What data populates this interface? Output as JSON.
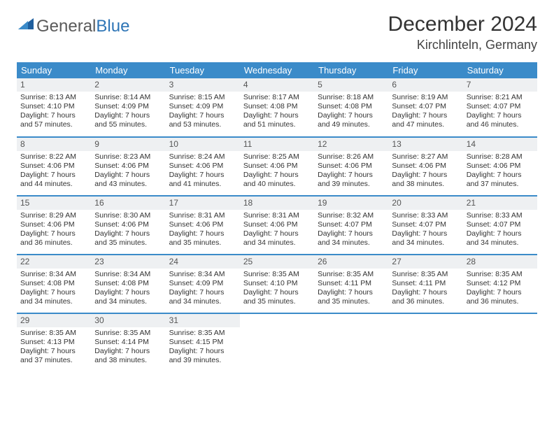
{
  "logo": {
    "text1": "General",
    "text2": "Blue"
  },
  "title": "December 2024",
  "location": "Kirchlinteln, Germany",
  "colors": {
    "header_bg": "#3b8bc9",
    "header_text": "#ffffff",
    "daynum_bg": "#eef0f2",
    "row_border": "#3b8bc9",
    "logo_gray": "#5a5a5a",
    "logo_blue": "#2e75b6"
  },
  "weekdays": [
    "Sunday",
    "Monday",
    "Tuesday",
    "Wednesday",
    "Thursday",
    "Friday",
    "Saturday"
  ],
  "weeks": [
    [
      {
        "n": "1",
        "sr": "8:13 AM",
        "ss": "4:10 PM",
        "dl": "7 hours and 57 minutes."
      },
      {
        "n": "2",
        "sr": "8:14 AM",
        "ss": "4:09 PM",
        "dl": "7 hours and 55 minutes."
      },
      {
        "n": "3",
        "sr": "8:15 AM",
        "ss": "4:09 PM",
        "dl": "7 hours and 53 minutes."
      },
      {
        "n": "4",
        "sr": "8:17 AM",
        "ss": "4:08 PM",
        "dl": "7 hours and 51 minutes."
      },
      {
        "n": "5",
        "sr": "8:18 AM",
        "ss": "4:08 PM",
        "dl": "7 hours and 49 minutes."
      },
      {
        "n": "6",
        "sr": "8:19 AM",
        "ss": "4:07 PM",
        "dl": "7 hours and 47 minutes."
      },
      {
        "n": "7",
        "sr": "8:21 AM",
        "ss": "4:07 PM",
        "dl": "7 hours and 46 minutes."
      }
    ],
    [
      {
        "n": "8",
        "sr": "8:22 AM",
        "ss": "4:06 PM",
        "dl": "7 hours and 44 minutes."
      },
      {
        "n": "9",
        "sr": "8:23 AM",
        "ss": "4:06 PM",
        "dl": "7 hours and 43 minutes."
      },
      {
        "n": "10",
        "sr": "8:24 AM",
        "ss": "4:06 PM",
        "dl": "7 hours and 41 minutes."
      },
      {
        "n": "11",
        "sr": "8:25 AM",
        "ss": "4:06 PM",
        "dl": "7 hours and 40 minutes."
      },
      {
        "n": "12",
        "sr": "8:26 AM",
        "ss": "4:06 PM",
        "dl": "7 hours and 39 minutes."
      },
      {
        "n": "13",
        "sr": "8:27 AM",
        "ss": "4:06 PM",
        "dl": "7 hours and 38 minutes."
      },
      {
        "n": "14",
        "sr": "8:28 AM",
        "ss": "4:06 PM",
        "dl": "7 hours and 37 minutes."
      }
    ],
    [
      {
        "n": "15",
        "sr": "8:29 AM",
        "ss": "4:06 PM",
        "dl": "7 hours and 36 minutes."
      },
      {
        "n": "16",
        "sr": "8:30 AM",
        "ss": "4:06 PM",
        "dl": "7 hours and 35 minutes."
      },
      {
        "n": "17",
        "sr": "8:31 AM",
        "ss": "4:06 PM",
        "dl": "7 hours and 35 minutes."
      },
      {
        "n": "18",
        "sr": "8:31 AM",
        "ss": "4:06 PM",
        "dl": "7 hours and 34 minutes."
      },
      {
        "n": "19",
        "sr": "8:32 AM",
        "ss": "4:07 PM",
        "dl": "7 hours and 34 minutes."
      },
      {
        "n": "20",
        "sr": "8:33 AM",
        "ss": "4:07 PM",
        "dl": "7 hours and 34 minutes."
      },
      {
        "n": "21",
        "sr": "8:33 AM",
        "ss": "4:07 PM",
        "dl": "7 hours and 34 minutes."
      }
    ],
    [
      {
        "n": "22",
        "sr": "8:34 AM",
        "ss": "4:08 PM",
        "dl": "7 hours and 34 minutes."
      },
      {
        "n": "23",
        "sr": "8:34 AM",
        "ss": "4:08 PM",
        "dl": "7 hours and 34 minutes."
      },
      {
        "n": "24",
        "sr": "8:34 AM",
        "ss": "4:09 PM",
        "dl": "7 hours and 34 minutes."
      },
      {
        "n": "25",
        "sr": "8:35 AM",
        "ss": "4:10 PM",
        "dl": "7 hours and 35 minutes."
      },
      {
        "n": "26",
        "sr": "8:35 AM",
        "ss": "4:11 PM",
        "dl": "7 hours and 35 minutes."
      },
      {
        "n": "27",
        "sr": "8:35 AM",
        "ss": "4:11 PM",
        "dl": "7 hours and 36 minutes."
      },
      {
        "n": "28",
        "sr": "8:35 AM",
        "ss": "4:12 PM",
        "dl": "7 hours and 36 minutes."
      }
    ],
    [
      {
        "n": "29",
        "sr": "8:35 AM",
        "ss": "4:13 PM",
        "dl": "7 hours and 37 minutes."
      },
      {
        "n": "30",
        "sr": "8:35 AM",
        "ss": "4:14 PM",
        "dl": "7 hours and 38 minutes."
      },
      {
        "n": "31",
        "sr": "8:35 AM",
        "ss": "4:15 PM",
        "dl": "7 hours and 39 minutes."
      },
      null,
      null,
      null,
      null
    ]
  ],
  "labels": {
    "sunrise": "Sunrise: ",
    "sunset": "Sunset: ",
    "daylight": "Daylight: "
  }
}
